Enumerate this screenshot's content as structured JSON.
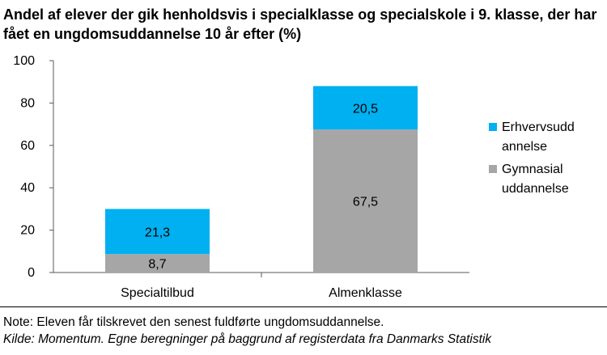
{
  "chart_data": {
    "type": "bar",
    "stacked": true,
    "title": "Andel af elever der gik henholdsvis i specialklasse og specialskole i 9. klasse, der har fået en ungdomsuddannelse 10 år efter (%)",
    "categories": [
      "Specialtilbud",
      "Almenklasse"
    ],
    "series": [
      {
        "name": "Gymnasial uddannelse",
        "color": "#a6a6a6",
        "values": [
          8.7,
          67.5
        ],
        "labels": [
          "8,7",
          "67,5"
        ]
      },
      {
        "name": "Erhvervsuddannelse",
        "color": "#00b0f0",
        "values": [
          21.3,
          20.5
        ],
        "labels": [
          "21,3",
          "20,5"
        ]
      }
    ],
    "legend": [
      {
        "lines": [
          "Erhvervsudd",
          "annelse"
        ],
        "color": "#00b0f0"
      },
      {
        "lines": [
          "Gymnasial",
          "uddannelse"
        ],
        "color": "#a6a6a6"
      }
    ],
    "ylim": [
      0,
      100
    ],
    "yticks": [
      0,
      20,
      40,
      60,
      80,
      100
    ],
    "xlabel": "",
    "ylabel": "",
    "grid": false,
    "legend_position": "right"
  },
  "note": "Note: Eleven får tilskrevet den senest fuldførte ungdomsuddannelse.",
  "source": "Kilde: Momentum. Egne beregninger på baggrund af registerdata fra Danmarks Statistik"
}
